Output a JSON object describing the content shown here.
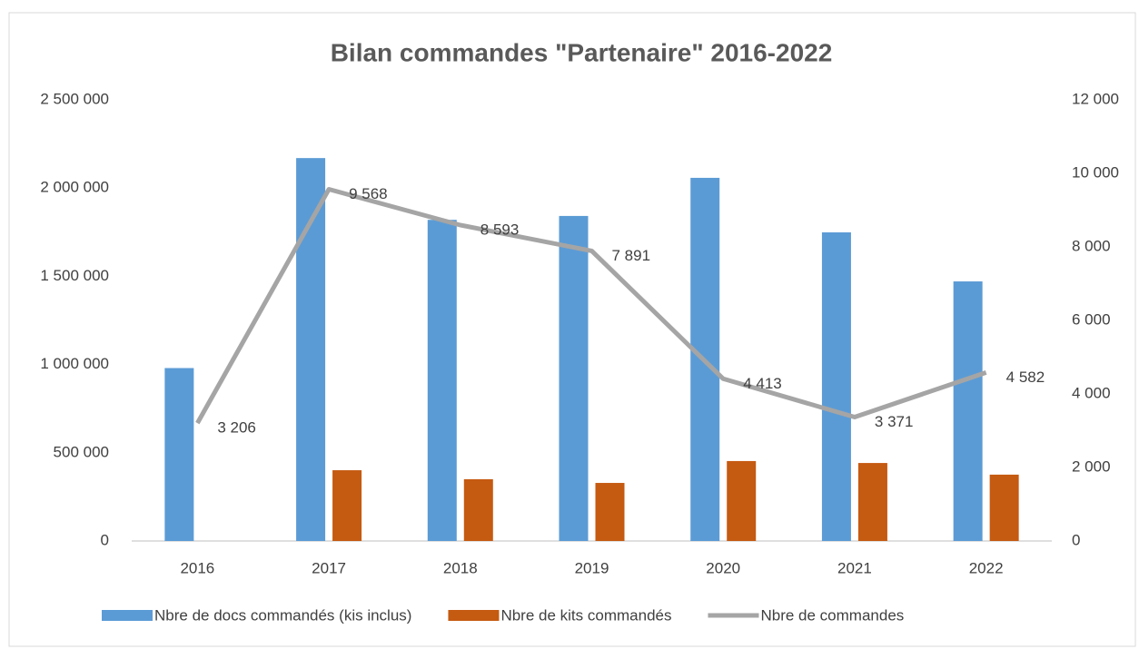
{
  "chart_data": {
    "type": "bar_line",
    "title": "Bilan commandes \"Partenaire\" 2016-2022",
    "categories": [
      "2016",
      "2017",
      "2018",
      "2019",
      "2020",
      "2021",
      "2022"
    ],
    "series": [
      {
        "name": "Nbre de docs commandés (kis inclus)",
        "color": "#5b9bd5",
        "type": "bar",
        "axis": "y",
        "values": [
          980000,
          2170000,
          1820000,
          1842000,
          2058000,
          1749000,
          1471000
        ]
      },
      {
        "name": "Nbre de kits commandés",
        "color": "#c55a11",
        "type": "bar",
        "axis": "y",
        "values": [
          null,
          401000,
          350000,
          329000,
          453000,
          442000,
          376000
        ]
      },
      {
        "name": "Nbre de commandes",
        "color": "#a5a5a5",
        "type": "line",
        "axis": "y2",
        "values": [
          3206,
          9568,
          8593,
          7891,
          4413,
          3371,
          4582
        ],
        "value_labels": [
          "3 206",
          "9 568",
          "8 593",
          "7 891",
          "4 413",
          "3 371",
          "4 582"
        ]
      }
    ],
    "ylim": [
      0,
      2500000
    ],
    "yticks": [
      0,
      {
        "value": 500000,
        "label": "500 000"
      },
      {
        "value": 1000000,
        "label": "1 000 000"
      },
      {
        "value": 1500000,
        "label": "1 500 000"
      },
      {
        "value": 2000000,
        "label": "2 000 000"
      },
      {
        "value": 2500000,
        "label": "2 500 000"
      }
    ],
    "y2lim": [
      0,
      12000
    ],
    "y2ticks": [
      0,
      {
        "value": 2000,
        "label": "2 000"
      },
      {
        "value": 4000,
        "label": "4 000"
      },
      {
        "value": 6000,
        "label": "6 000"
      },
      {
        "value": 8000,
        "label": "8 000"
      },
      {
        "value": 10000,
        "label": "10 000"
      },
      {
        "value": 12000,
        "label": "12 000"
      }
    ],
    "grid": false,
    "legend": "bottom"
  }
}
